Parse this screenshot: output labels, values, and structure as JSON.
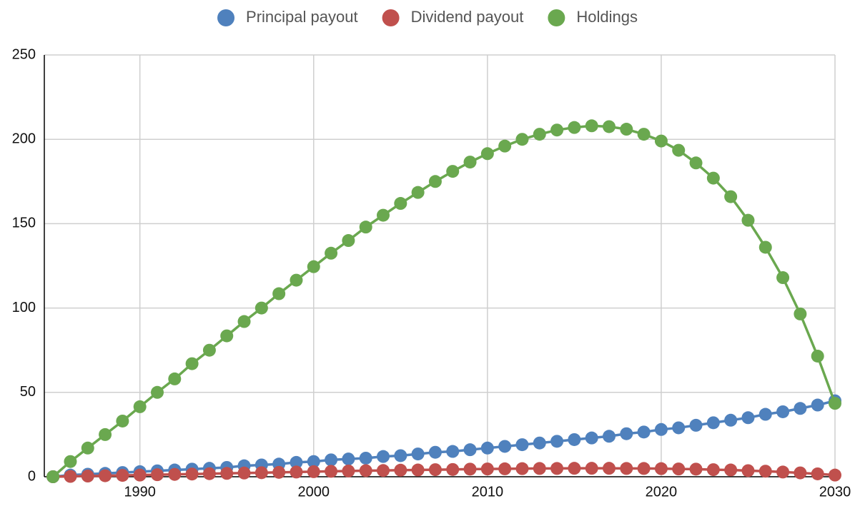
{
  "chart_data": {
    "type": "line",
    "x": [
      1985,
      1986,
      1987,
      1988,
      1989,
      1990,
      1991,
      1992,
      1993,
      1994,
      1995,
      1996,
      1997,
      1998,
      1999,
      2000,
      2001,
      2002,
      2003,
      2004,
      2005,
      2006,
      2007,
      2008,
      2009,
      2010,
      2011,
      2012,
      2013,
      2014,
      2015,
      2016,
      2017,
      2018,
      2019,
      2020,
      2021,
      2022,
      2023,
      2024,
      2025,
      2026,
      2027,
      2028,
      2029,
      2030
    ],
    "series": [
      {
        "name": "Principal payout",
        "color": "#4f81bd",
        "values": [
          0,
          1,
          1.5,
          2,
          2.5,
          3,
          3.5,
          4,
          4.5,
          5,
          5.5,
          6.5,
          7,
          7.5,
          8.5,
          9,
          10,
          10.5,
          11,
          12,
          12.5,
          13.5,
          14.5,
          15,
          16,
          17,
          18,
          19,
          20,
          21,
          22,
          23,
          24,
          25.5,
          26.5,
          28,
          29,
          30.5,
          32,
          33.5,
          35,
          37,
          38.5,
          40.5,
          42.5,
          45
        ]
      },
      {
        "name": "Dividend payout",
        "color": "#c0504d",
        "values": [
          0,
          0.2,
          0.4,
          0.6,
          0.8,
          1,
          1.2,
          1.4,
          1.6,
          1.8,
          2,
          2.2,
          2.4,
          2.6,
          2.8,
          3,
          3.2,
          3.4,
          3.6,
          3.7,
          3.9,
          4,
          4.2,
          4.3,
          4.5,
          4.6,
          4.7,
          4.8,
          4.9,
          4.9,
          5,
          5,
          5,
          4.9,
          4.9,
          4.8,
          4.6,
          4.5,
          4.2,
          4,
          3.6,
          3.3,
          2.8,
          2.3,
          1.7,
          1
        ]
      },
      {
        "name": "Holdings",
        "color": "#6aa84f",
        "values": [
          0,
          9,
          17,
          25,
          33,
          41.5,
          50,
          58,
          67,
          75,
          83.5,
          92,
          100,
          108.5,
          116.5,
          124.5,
          132.5,
          140,
          148,
          155,
          162,
          168.5,
          175,
          181,
          186.5,
          191.5,
          196,
          200,
          203,
          205.5,
          207,
          208,
          207.5,
          206,
          203,
          199,
          193.5,
          186,
          177,
          166,
          152,
          136,
          118,
          96.5,
          71.5,
          43.5
        ]
      }
    ],
    "xlim": [
      1984.5,
      2030
    ],
    "xticks": [
      1990,
      2000,
      2010,
      2020,
      2030
    ],
    "ylim": [
      0,
      250
    ],
    "yticks": [
      0,
      50,
      100,
      150,
      200,
      250
    ],
    "grid": true,
    "legend": "top"
  }
}
